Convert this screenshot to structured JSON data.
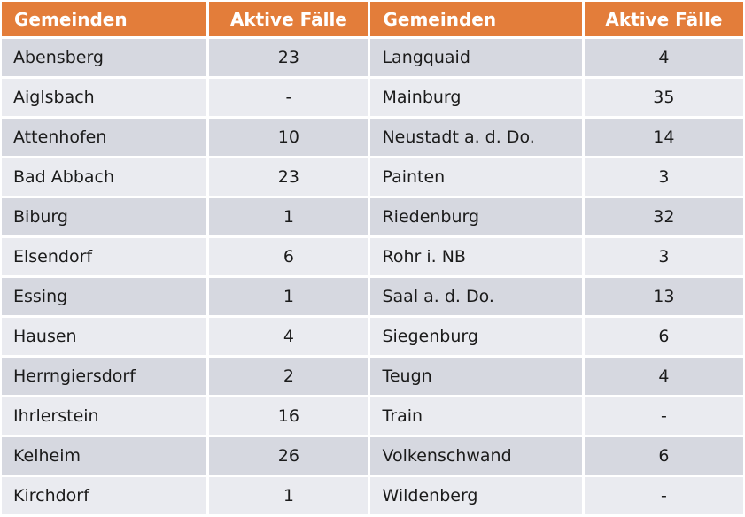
{
  "colors": {
    "header_bg": "#E37D3A",
    "header_text": "#FFFFFF",
    "row_odd_bg": "#D6D8E0",
    "row_even_bg": "#EAEBF0",
    "divider": "#FFFFFF",
    "cell_text": "#1B1B1B"
  },
  "table": {
    "headers": [
      "Gemeinden",
      "Aktive Fälle",
      "Gemeinden",
      "Aktive Fälle"
    ],
    "rows": [
      [
        "Abensberg",
        "23",
        "Langquaid",
        "4"
      ],
      [
        "Aiglsbach",
        "-",
        "Mainburg",
        "35"
      ],
      [
        "Attenhofen",
        "10",
        "Neustadt a. d. Do.",
        "14"
      ],
      [
        "Bad Abbach",
        "23",
        "Painten",
        "3"
      ],
      [
        "Biburg",
        "1",
        "Riedenburg",
        "32"
      ],
      [
        "Elsendorf",
        "6",
        "Rohr i. NB",
        "3"
      ],
      [
        "Essing",
        "1",
        "Saal a. d. Do.",
        "13"
      ],
      [
        "Hausen",
        "4",
        "Siegenburg",
        "6"
      ],
      [
        "Herrngiersdorf",
        "2",
        "Teugn",
        "4"
      ],
      [
        "Ihrlerstein",
        "16",
        "Train",
        "-"
      ],
      [
        "Kelheim",
        "26",
        "Volkenschwand",
        "6"
      ],
      [
        "Kirchdorf",
        "1",
        "Wildenberg",
        "-"
      ]
    ]
  },
  "chart_data": {
    "type": "table",
    "title": "",
    "columns": [
      "Gemeinden",
      "Aktive Fälle",
      "Gemeinden",
      "Aktive Fälle"
    ],
    "records": [
      {
        "gemeinde": "Abensberg",
        "aktive_faelle": "23"
      },
      {
        "gemeinde": "Aiglsbach",
        "aktive_faelle": "-"
      },
      {
        "gemeinde": "Attenhofen",
        "aktive_faelle": "10"
      },
      {
        "gemeinde": "Bad Abbach",
        "aktive_faelle": "23"
      },
      {
        "gemeinde": "Biburg",
        "aktive_faelle": "1"
      },
      {
        "gemeinde": "Elsendorf",
        "aktive_faelle": "6"
      },
      {
        "gemeinde": "Essing",
        "aktive_faelle": "1"
      },
      {
        "gemeinde": "Hausen",
        "aktive_faelle": "4"
      },
      {
        "gemeinde": "Herrngiersdorf",
        "aktive_faelle": "2"
      },
      {
        "gemeinde": "Ihrlerstein",
        "aktive_faelle": "16"
      },
      {
        "gemeinde": "Kelheim",
        "aktive_faelle": "26"
      },
      {
        "gemeinde": "Kirchdorf",
        "aktive_faelle": "1"
      },
      {
        "gemeinde": "Langquaid",
        "aktive_faelle": "4"
      },
      {
        "gemeinde": "Mainburg",
        "aktive_faelle": "35"
      },
      {
        "gemeinde": "Neustadt a. d. Do.",
        "aktive_faelle": "14"
      },
      {
        "gemeinde": "Painten",
        "aktive_faelle": "3"
      },
      {
        "gemeinde": "Riedenburg",
        "aktive_faelle": "32"
      },
      {
        "gemeinde": "Rohr i. NB",
        "aktive_faelle": "3"
      },
      {
        "gemeinde": "Saal a. d. Do.",
        "aktive_faelle": "13"
      },
      {
        "gemeinde": "Siegenburg",
        "aktive_faelle": "6"
      },
      {
        "gemeinde": "Teugn",
        "aktive_faelle": "4"
      },
      {
        "gemeinde": "Train",
        "aktive_faelle": "-"
      },
      {
        "gemeinde": "Volkenschwand",
        "aktive_faelle": "6"
      },
      {
        "gemeinde": "Wildenberg",
        "aktive_faelle": "-"
      }
    ]
  }
}
